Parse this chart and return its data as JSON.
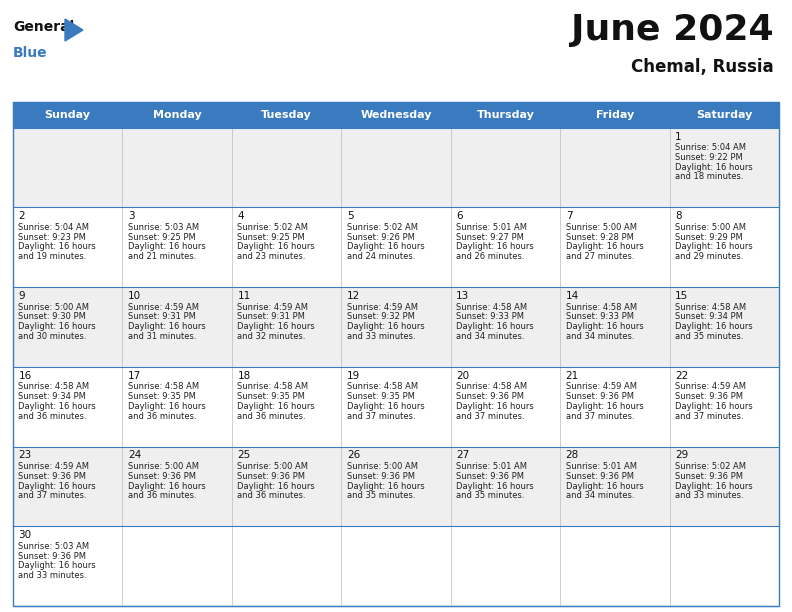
{
  "title": "June 2024",
  "subtitle": "Chemal, Russia",
  "days_of_week": [
    "Sunday",
    "Monday",
    "Tuesday",
    "Wednesday",
    "Thursday",
    "Friday",
    "Saturday"
  ],
  "header_color": "#3a7abf",
  "header_text_color": "#ffffff",
  "bg_color": "#ffffff",
  "cell_bg_even": "#efefef",
  "cell_bg_odd": "#ffffff",
  "grid_line_color": "#3a7abf",
  "text_color": "#222222",
  "num_color": "#111111",
  "calendar": [
    [
      null,
      null,
      null,
      null,
      null,
      null,
      {
        "day": "1",
        "sunrise": "5:04 AM",
        "sunset": "9:22 PM",
        "daylight": "16 hours and 18 minutes."
      }
    ],
    [
      {
        "day": "2",
        "sunrise": "5:04 AM",
        "sunset": "9:23 PM",
        "daylight": "16 hours and 19 minutes."
      },
      {
        "day": "3",
        "sunrise": "5:03 AM",
        "sunset": "9:25 PM",
        "daylight": "16 hours and 21 minutes."
      },
      {
        "day": "4",
        "sunrise": "5:02 AM",
        "sunset": "9:25 PM",
        "daylight": "16 hours and 23 minutes."
      },
      {
        "day": "5",
        "sunrise": "5:02 AM",
        "sunset": "9:26 PM",
        "daylight": "16 hours and 24 minutes."
      },
      {
        "day": "6",
        "sunrise": "5:01 AM",
        "sunset": "9:27 PM",
        "daylight": "16 hours and 26 minutes."
      },
      {
        "day": "7",
        "sunrise": "5:00 AM",
        "sunset": "9:28 PM",
        "daylight": "16 hours and 27 minutes."
      },
      {
        "day": "8",
        "sunrise": "5:00 AM",
        "sunset": "9:29 PM",
        "daylight": "16 hours and 29 minutes."
      }
    ],
    [
      {
        "day": "9",
        "sunrise": "5:00 AM",
        "sunset": "9:30 PM",
        "daylight": "16 hours and 30 minutes."
      },
      {
        "day": "10",
        "sunrise": "4:59 AM",
        "sunset": "9:31 PM",
        "daylight": "16 hours and 31 minutes."
      },
      {
        "day": "11",
        "sunrise": "4:59 AM",
        "sunset": "9:31 PM",
        "daylight": "16 hours and 32 minutes."
      },
      {
        "day": "12",
        "sunrise": "4:59 AM",
        "sunset": "9:32 PM",
        "daylight": "16 hours and 33 minutes."
      },
      {
        "day": "13",
        "sunrise": "4:58 AM",
        "sunset": "9:33 PM",
        "daylight": "16 hours and 34 minutes."
      },
      {
        "day": "14",
        "sunrise": "4:58 AM",
        "sunset": "9:33 PM",
        "daylight": "16 hours and 34 minutes."
      },
      {
        "day": "15",
        "sunrise": "4:58 AM",
        "sunset": "9:34 PM",
        "daylight": "16 hours and 35 minutes."
      }
    ],
    [
      {
        "day": "16",
        "sunrise": "4:58 AM",
        "sunset": "9:34 PM",
        "daylight": "16 hours and 36 minutes."
      },
      {
        "day": "17",
        "sunrise": "4:58 AM",
        "sunset": "9:35 PM",
        "daylight": "16 hours and 36 minutes."
      },
      {
        "day": "18",
        "sunrise": "4:58 AM",
        "sunset": "9:35 PM",
        "daylight": "16 hours and 36 minutes."
      },
      {
        "day": "19",
        "sunrise": "4:58 AM",
        "sunset": "9:35 PM",
        "daylight": "16 hours and 37 minutes."
      },
      {
        "day": "20",
        "sunrise": "4:58 AM",
        "sunset": "9:36 PM",
        "daylight": "16 hours and 37 minutes."
      },
      {
        "day": "21",
        "sunrise": "4:59 AM",
        "sunset": "9:36 PM",
        "daylight": "16 hours and 37 minutes."
      },
      {
        "day": "22",
        "sunrise": "4:59 AM",
        "sunset": "9:36 PM",
        "daylight": "16 hours and 37 minutes."
      }
    ],
    [
      {
        "day": "23",
        "sunrise": "4:59 AM",
        "sunset": "9:36 PM",
        "daylight": "16 hours and 37 minutes."
      },
      {
        "day": "24",
        "sunrise": "5:00 AM",
        "sunset": "9:36 PM",
        "daylight": "16 hours and 36 minutes."
      },
      {
        "day": "25",
        "sunrise": "5:00 AM",
        "sunset": "9:36 PM",
        "daylight": "16 hours and 36 minutes."
      },
      {
        "day": "26",
        "sunrise": "5:00 AM",
        "sunset": "9:36 PM",
        "daylight": "16 hours and 35 minutes."
      },
      {
        "day": "27",
        "sunrise": "5:01 AM",
        "sunset": "9:36 PM",
        "daylight": "16 hours and 35 minutes."
      },
      {
        "day": "28",
        "sunrise": "5:01 AM",
        "sunset": "9:36 PM",
        "daylight": "16 hours and 34 minutes."
      },
      {
        "day": "29",
        "sunrise": "5:02 AM",
        "sunset": "9:36 PM",
        "daylight": "16 hours and 33 minutes."
      }
    ],
    [
      {
        "day": "30",
        "sunrise": "5:03 AM",
        "sunset": "9:36 PM",
        "daylight": "16 hours and 33 minutes."
      },
      null,
      null,
      null,
      null,
      null,
      null
    ]
  ]
}
